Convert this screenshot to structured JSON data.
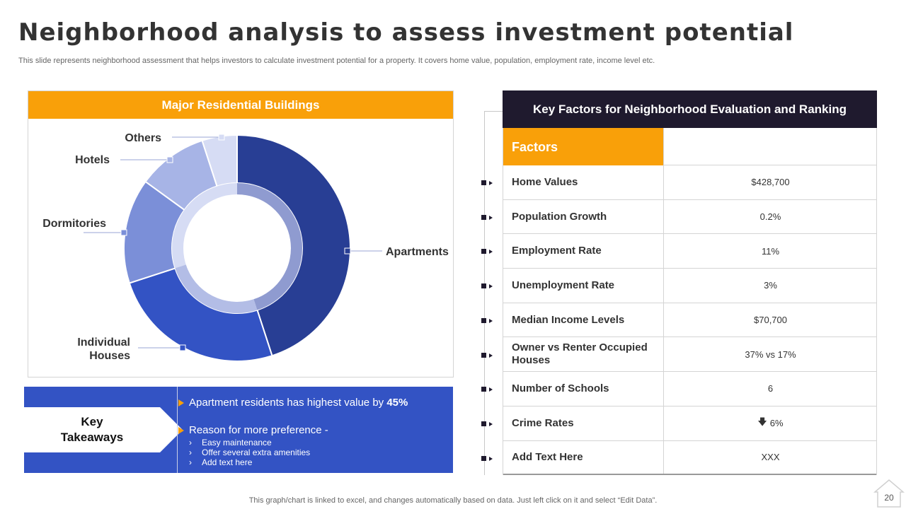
{
  "title": "Neighborhood analysis to assess investment potential",
  "subtitle": "This slide represents neighborhood assessment that helps investors to calculate investment potential for a property. It covers home value, population, employment rate, income level etc.",
  "chart_panel": {
    "header": "Major Residential Buildings"
  },
  "chart_data": {
    "type": "pie",
    "style": "donut",
    "title": "Major Residential Buildings",
    "categories": [
      "Apartments",
      "Individual Houses",
      "Dormitories",
      "Hotels",
      "Others"
    ],
    "values": [
      45,
      25,
      15,
      10,
      5
    ],
    "colors": [
      "#283e94",
      "#3353c4",
      "#7b8fd8",
      "#a7b4e6",
      "#d6dcf4"
    ],
    "labels": {
      "apartments": "Apartments",
      "individual_houses_1": "Individual",
      "individual_houses_2": "Houses",
      "dormitories": "Dormitories",
      "hotels": "Hotels",
      "others": "Others"
    }
  },
  "takeaways": {
    "tag_line1": "Key",
    "tag_line2": "Takeaways",
    "line1_text": "Apartment residents has highest value by ",
    "line1_bold": "45%",
    "line2_text": "Reason for more preference -",
    "bullet_char": "›",
    "sub_items": [
      "Easy maintenance",
      "Offer several extra amenities",
      "Add text here"
    ]
  },
  "table": {
    "header": "Key Factors for Neighborhood Evaluation and Ranking",
    "col1_header": "Factors",
    "col2_header": "",
    "rows": [
      {
        "factor": "Home Values",
        "value": "$428,700"
      },
      {
        "factor": "Population Growth",
        "value": "0.2%"
      },
      {
        "factor": "Employment Rate",
        "value": "11%"
      },
      {
        "factor": "Unemployment Rate",
        "value": "3%"
      },
      {
        "factor": "Median Income Levels",
        "value": "$70,700"
      },
      {
        "factor": "Owner vs Renter Occupied Houses",
        "value": "37% vs 17%"
      },
      {
        "factor": "Number of Schools",
        "value": "6"
      },
      {
        "factor": "Crime Rates",
        "value": "6%",
        "icon": "down-arrow-icon"
      },
      {
        "factor": "Add  Text Here",
        "value": "XXX"
      }
    ],
    "crime_arrow": "🡇"
  },
  "footnote": "This graph/chart is linked to excel,  and changes automatically based on data. Just left click on it and select “Edit Data”.",
  "page_number": "20"
}
